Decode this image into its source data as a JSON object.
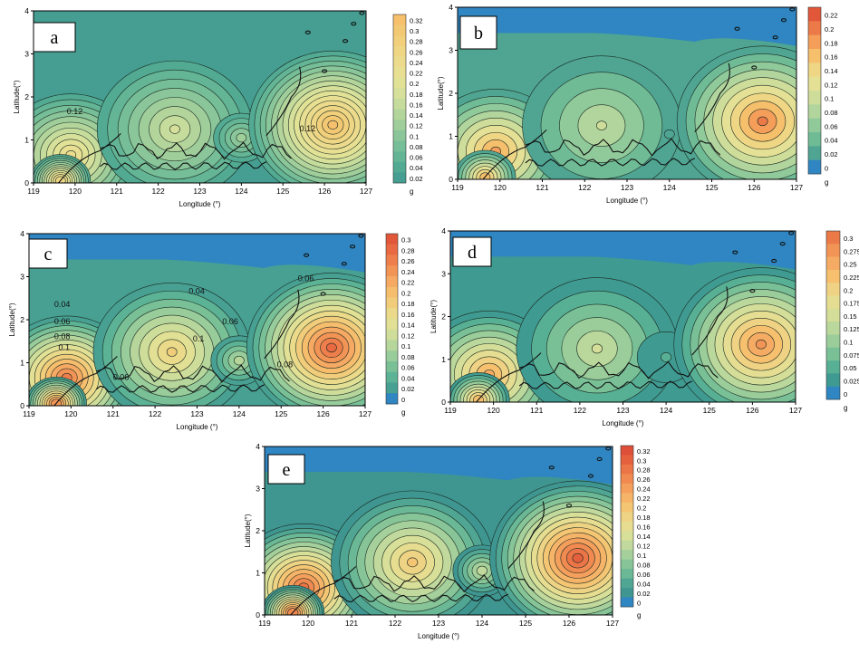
{
  "figure": {
    "panels": [
      {
        "id": "a",
        "label": "a",
        "xlabel": "Longitude (°)",
        "ylabel": "Latitude(°)",
        "x_ticks": [
          "119",
          "120",
          "121",
          "122",
          "123",
          "124",
          "125",
          "126",
          "127"
        ],
        "y_ticks": [
          "0",
          "1",
          "2",
          "3",
          "4"
        ],
        "colorbar": {
          "unit": "g",
          "ticks": [
            "0.32",
            "0.3",
            "0.28",
            "0.26",
            "0.24",
            "0.22",
            "0.2",
            "0.18",
            "0.16",
            "0.14",
            "0.12",
            "0.1",
            "0.08",
            "0.06",
            "0.04",
            "0.02"
          ],
          "colors": [
            "#f6c06d",
            "#f3c873",
            "#f1cf7b",
            "#eed684",
            "#ecdb8c",
            "#e8df92",
            "#e2e297",
            "#d6e09a",
            "#c6dc9c",
            "#b3d59c",
            "#9fce9b",
            "#8ac699",
            "#76be97",
            "#63b595",
            "#52aa93",
            "#459e91"
          ]
        },
        "contour_labels": [
          "0.12",
          "0.12"
        ]
      },
      {
        "id": "b",
        "label": "b",
        "xlabel": "Longitude (°)",
        "ylabel": "Latitude(°)",
        "x_ticks": [
          "119",
          "120",
          "121",
          "122",
          "123",
          "124",
          "125",
          "126",
          "127"
        ],
        "y_ticks": [
          "0",
          "1",
          "2",
          "3",
          "4"
        ],
        "colorbar": {
          "unit": "g",
          "ticks": [
            "0.22",
            "0.2",
            "0.18",
            "0.16",
            "0.14",
            "0.12",
            "0.1",
            "0.08",
            "0.06",
            "0.04",
            "0.02",
            "0"
          ],
          "colors": [
            "#e2573a",
            "#ec7a48",
            "#f49e5a",
            "#f6bf6c",
            "#efd685",
            "#e4e095",
            "#cfdd9a",
            "#b1d59c",
            "#90c99a",
            "#6fbb96",
            "#4fa592",
            "#2f86c2"
          ]
        },
        "contour_labels": []
      },
      {
        "id": "c",
        "label": "c",
        "xlabel": "Longitude (°)",
        "ylabel": "Latitude(°)",
        "x_ticks": [
          "119",
          "120",
          "121",
          "122",
          "123",
          "124",
          "125",
          "126",
          "127"
        ],
        "y_ticks": [
          "0",
          "1",
          "2",
          "3",
          "4"
        ],
        "colorbar": {
          "unit": "g",
          "ticks": [
            "0.3",
            "0.28",
            "0.26",
            "0.24",
            "0.22",
            "0.2",
            "0.18",
            "0.16",
            "0.14",
            "0.12",
            "0.1",
            "0.08",
            "0.06",
            "0.04",
            "0.02",
            "0"
          ],
          "colors": [
            "#e2573a",
            "#e96a42",
            "#ee7e4b",
            "#f29456",
            "#f5a962",
            "#f6bd6d",
            "#f1cd7b",
            "#eada8a",
            "#e1e095",
            "#cfdd9a",
            "#b6d69c",
            "#98cc9a",
            "#79c097",
            "#5cb294",
            "#47a092",
            "#2f86c2"
          ]
        },
        "contour_labels": [
          "0.04",
          "0.04",
          "0.06",
          "0.08",
          "0.1",
          "0.1",
          "0.06",
          "0.06",
          "0.06",
          "0.08"
        ]
      },
      {
        "id": "d",
        "label": "d",
        "xlabel": "Longitude (°)",
        "ylabel": "Latitude(°)",
        "x_ticks": [
          "119",
          "120",
          "121",
          "122",
          "123",
          "124",
          "125",
          "126",
          "127"
        ],
        "y_ticks": [
          "0",
          "1",
          "2",
          "3",
          "4"
        ],
        "colorbar": {
          "unit": "g",
          "ticks": [
            "0.3",
            "0.275",
            "0.25",
            "0.225",
            "0.2",
            "0.175",
            "0.15",
            "0.125",
            "0.1",
            "0.075",
            "0.05",
            "0.025",
            "0"
          ],
          "colors": [
            "#ec7a48",
            "#f29456",
            "#f5ab63",
            "#f6c06e",
            "#efd283",
            "#e5de92",
            "#d4de99",
            "#bad79c",
            "#9acd9a",
            "#79c097",
            "#58b094",
            "#3f9a91",
            "#2f86c2"
          ]
        },
        "contour_labels": []
      },
      {
        "id": "e",
        "label": "e",
        "xlabel": "Longitude (°)",
        "ylabel": "Latitude(°)",
        "x_ticks": [
          "119",
          "120",
          "121",
          "122",
          "123",
          "124",
          "125",
          "126",
          "127"
        ],
        "y_ticks": [
          "0",
          "1",
          "2",
          "3",
          "4"
        ],
        "colorbar": {
          "unit": "g",
          "ticks": [
            "0.32",
            "0.3",
            "0.28",
            "0.26",
            "0.24",
            "0.22",
            "0.2",
            "0.18",
            "0.16",
            "0.14",
            "0.12",
            "0.1",
            "0.08",
            "0.06",
            "0.04",
            "0.02",
            "0"
          ],
          "colors": [
            "#dd4f38",
            "#e5613e",
            "#eb7546",
            "#f08a51",
            "#f49f5c",
            "#f6b468",
            "#f4c573",
            "#eed384",
            "#e6dd91",
            "#d8df98",
            "#c1d99c",
            "#a5d09b",
            "#87c598",
            "#6ab895",
            "#50a693",
            "#3f9691",
            "#2f86c2"
          ]
        },
        "contour_labels": []
      }
    ]
  }
}
